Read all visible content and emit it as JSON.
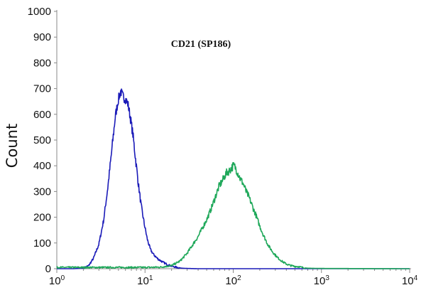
{
  "chart_data": {
    "type": "line",
    "title": "CD21 (SP186)",
    "xlabel": "",
    "ylabel": "Count",
    "xscale": "log",
    "xlim": [
      1,
      10000
    ],
    "ylim": [
      0,
      1000
    ],
    "yticks": [
      "0",
      "100",
      "200",
      "300",
      "400",
      "500",
      "600",
      "700",
      "800",
      "900",
      "1000"
    ],
    "xticks": [
      {
        "base": "10",
        "exp": "0"
      },
      {
        "base": "10",
        "exp": "1"
      },
      {
        "base": "10",
        "exp": "2"
      },
      {
        "base": "10",
        "exp": "3"
      },
      {
        "base": "10",
        "exp": "4"
      }
    ],
    "grid": false,
    "series": [
      {
        "color": "#1a1ab8",
        "x": [
          1,
          1.5,
          2,
          2.3,
          2.6,
          3.0,
          3.4,
          3.8,
          4.2,
          4.6,
          5.0,
          5.3,
          5.6,
          6.0,
          6.4,
          6.8,
          7.3,
          7.8,
          8.4,
          9.0,
          9.8,
          10.6,
          11.5,
          12.5,
          14,
          16,
          18,
          20,
          23,
          26,
          30,
          40,
          100,
          1000,
          10000
        ],
        "y": [
          0,
          0,
          2,
          12,
          40,
          95,
          190,
          320,
          460,
          590,
          660,
          690,
          670,
          660,
          640,
          590,
          520,
          430,
          330,
          250,
          175,
          115,
          75,
          55,
          38,
          25,
          16,
          10,
          5,
          2,
          1,
          0,
          0,
          0,
          0
        ]
      },
      {
        "color": "#1fa85a",
        "x": [
          1,
          10,
          15,
          20,
          25,
          30,
          35,
          40,
          45,
          50,
          55,
          60,
          65,
          70,
          75,
          80,
          85,
          90,
          95,
          100,
          105,
          110,
          115,
          120,
          130,
          140,
          150,
          160,
          170,
          180,
          200,
          220,
          250,
          280,
          320,
          360,
          400,
          450,
          500,
          550,
          600,
          650,
          700,
          1000,
          10000
        ],
        "y": [
          5,
          5,
          6,
          12,
          30,
          60,
          95,
          125,
          160,
          190,
          225,
          260,
          295,
          325,
          340,
          360,
          375,
          380,
          390,
          400,
          395,
          380,
          365,
          350,
          330,
          300,
          280,
          255,
          230,
          210,
          165,
          130,
          90,
          65,
          42,
          28,
          18,
          12,
          9,
          8,
          5,
          3,
          2,
          1,
          0
        ]
      }
    ]
  }
}
